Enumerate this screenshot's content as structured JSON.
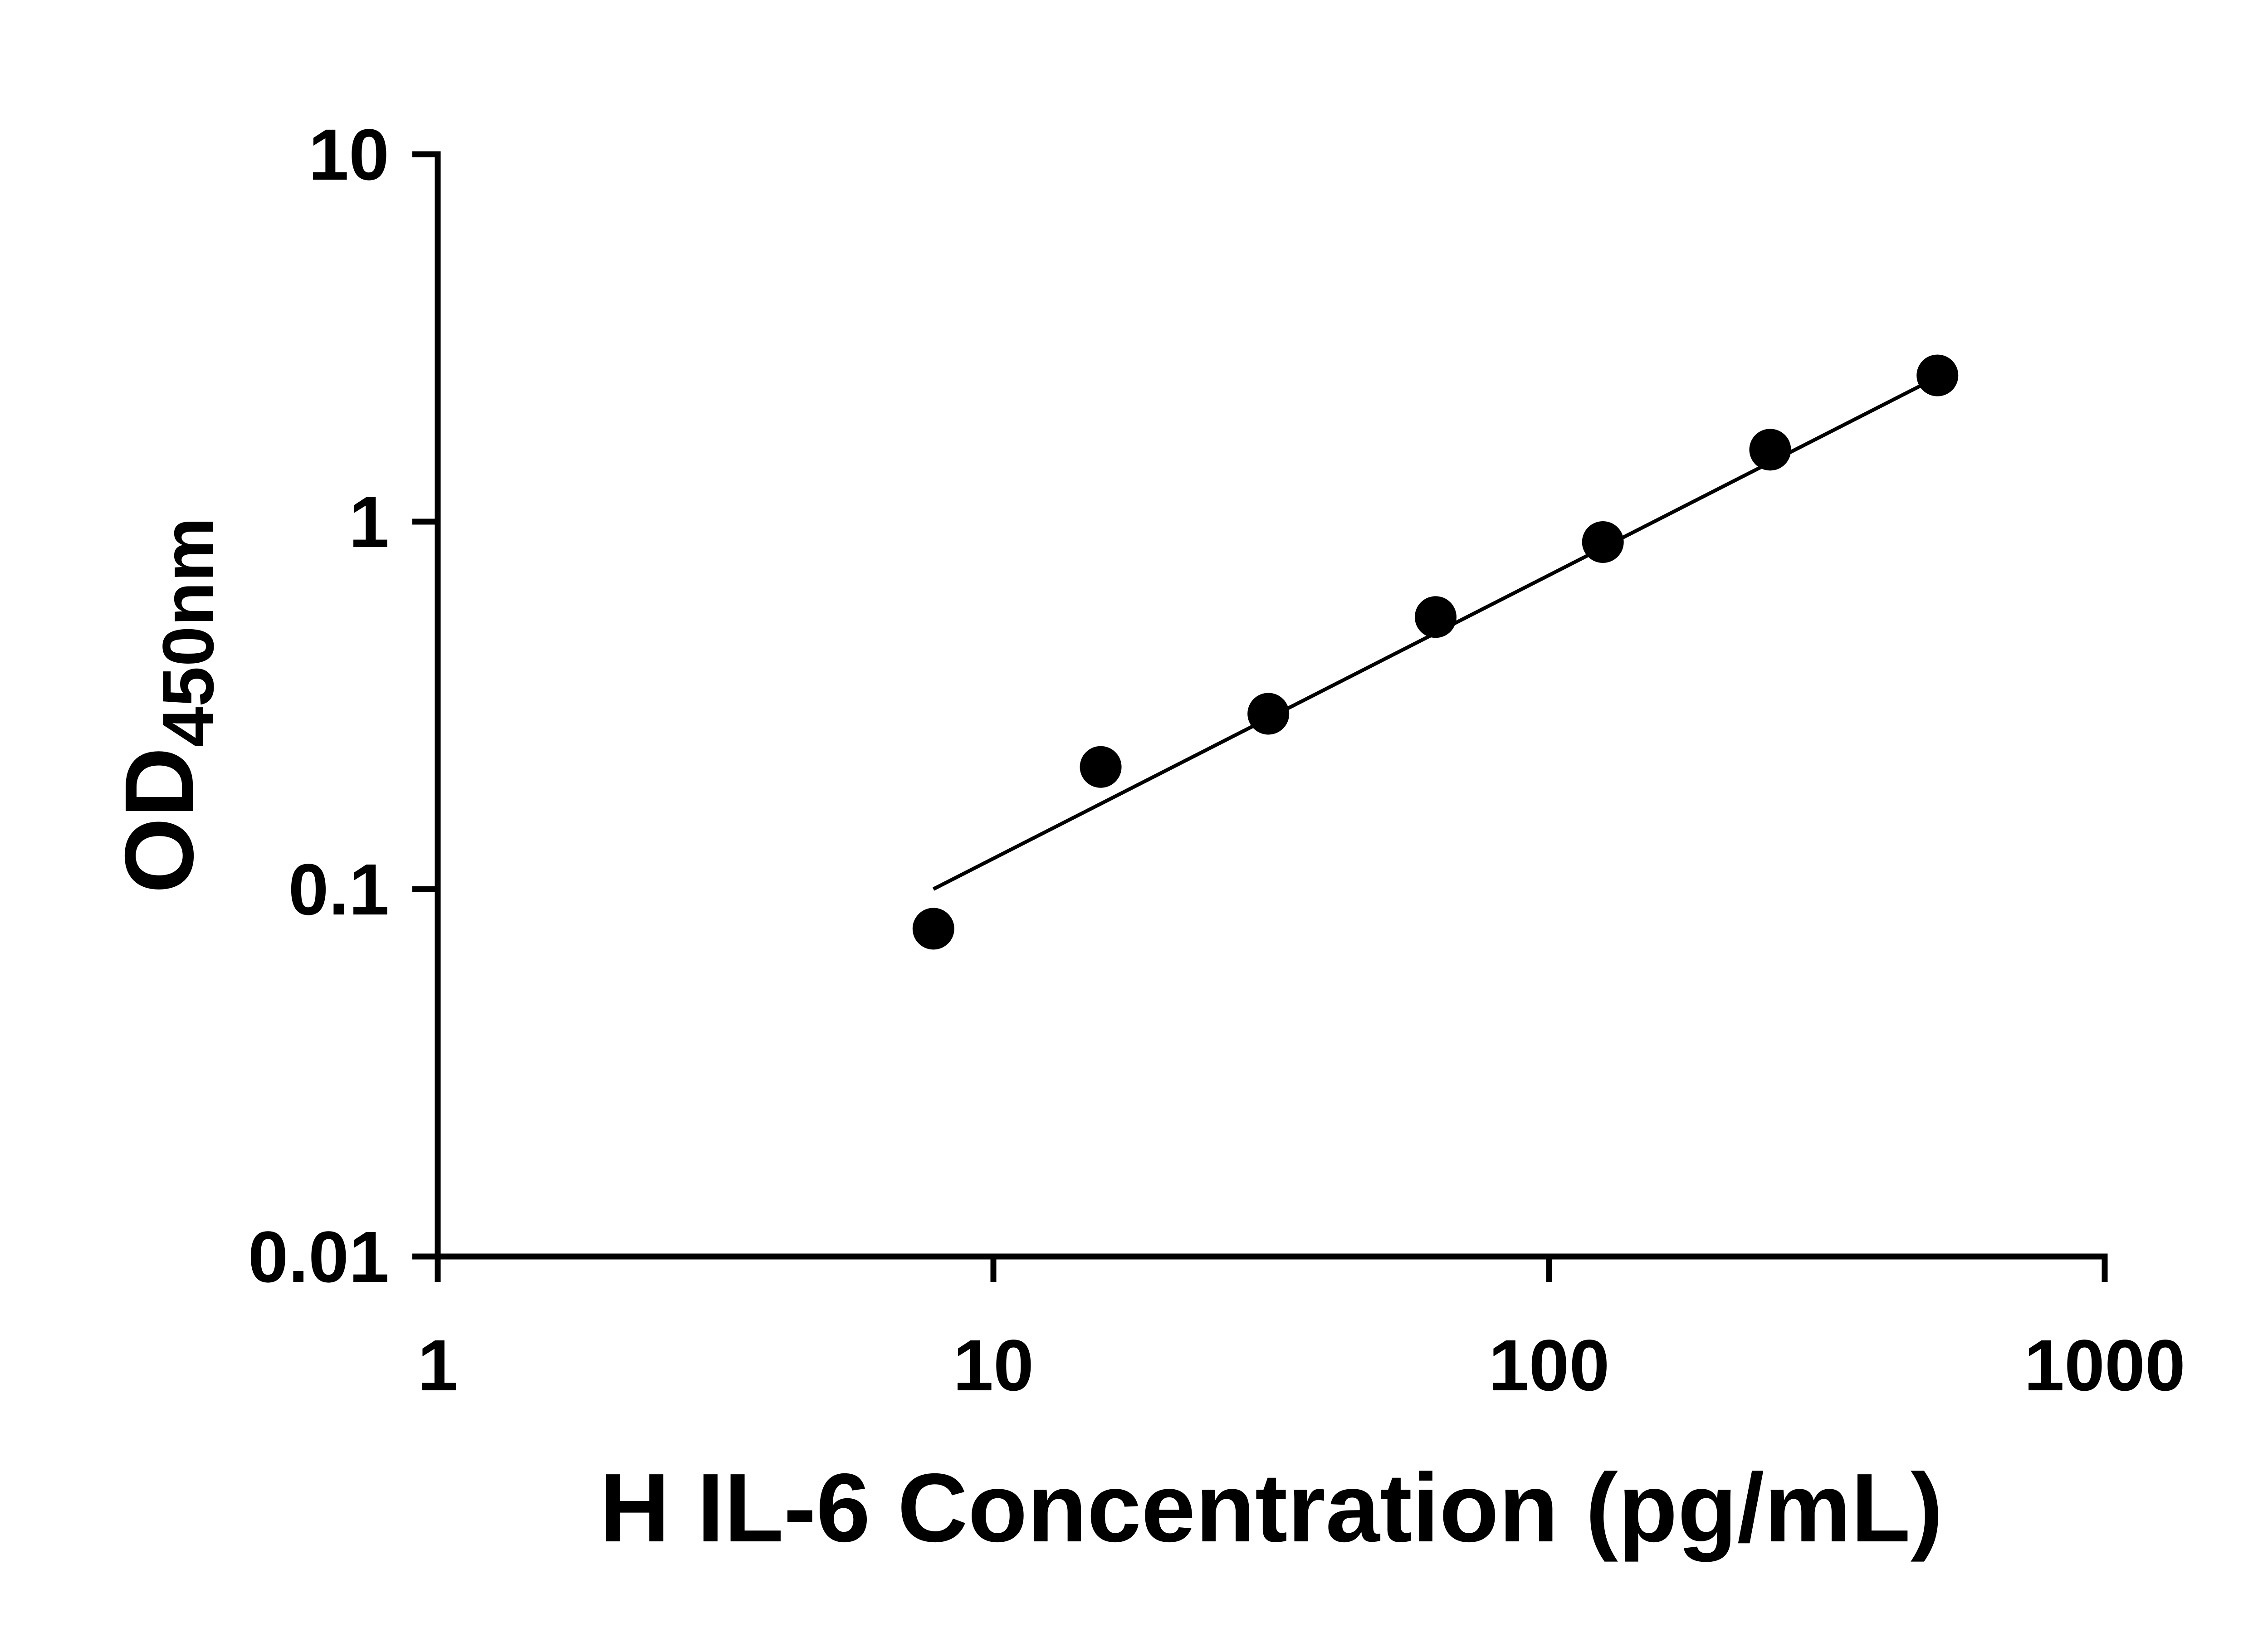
{
  "figure": {
    "background_color": "#ffffff",
    "axis_color": "#000000"
  },
  "chart_data": {
    "type": "scatter",
    "title": "",
    "xlabel": "H IL-6 Concentration (pg/mL)",
    "ylabel_main": "OD",
    "ylabel_sub": "450nm",
    "x_scale": "log",
    "y_scale": "log",
    "xlim": [
      1,
      1000
    ],
    "ylim": [
      0.01,
      10
    ],
    "x_ticks": [
      {
        "value": 1,
        "label": "1"
      },
      {
        "value": 10,
        "label": "10"
      },
      {
        "value": 100,
        "label": "100"
      },
      {
        "value": 1000,
        "label": "1000"
      }
    ],
    "y_ticks": [
      {
        "value": 0.01,
        "label": "0.01"
      },
      {
        "value": 0.1,
        "label": "0.1"
      },
      {
        "value": 1,
        "label": "1"
      },
      {
        "value": 10,
        "label": "10"
      }
    ],
    "points": [
      {
        "x": 7.8,
        "y": 0.078
      },
      {
        "x": 15.6,
        "y": 0.215
      },
      {
        "x": 31.25,
        "y": 0.3
      },
      {
        "x": 62.5,
        "y": 0.55
      },
      {
        "x": 125,
        "y": 0.88
      },
      {
        "x": 250,
        "y": 1.57
      },
      {
        "x": 500,
        "y": 2.5
      }
    ],
    "marker": "filled-circle",
    "marker_color": "#000000",
    "trend_line": {
      "x1": 7.8,
      "y1": 0.1,
      "x2": 515,
      "y2": 2.53,
      "color": "#000000"
    },
    "grid": false,
    "legend": false
  }
}
